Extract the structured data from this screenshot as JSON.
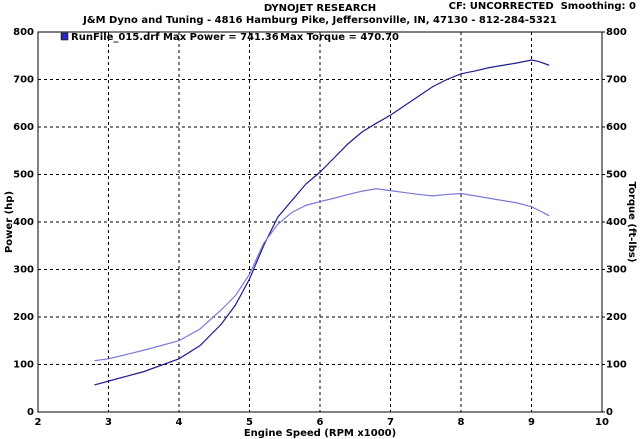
{
  "chart_data": {
    "type": "line",
    "title": "DYNOJET RESEARCH",
    "subtitle": "J&M Dyno and Tuning - 4816 Hamburg Pike, Jeffersonville, IN, 47130 - 812-284-5321",
    "corner_note": "CF: UNCORRECTED  Smoothing: 0",
    "legend_text": "RunFile_015.drf Max Power = 741.36",
    "legend_text_2": "Max Torque = 470.70",
    "xlabel": "Engine Speed (RPM x1000)",
    "ylabel": "Power (hp)",
    "y2label": "Torque (ft-lbs)",
    "xlim": [
      2,
      10
    ],
    "xticks": [
      2,
      3,
      4,
      5,
      6,
      7,
      8,
      9,
      10
    ],
    "ylim": [
      0,
      800
    ],
    "yticks": [
      0,
      100,
      200,
      300,
      400,
      500,
      600,
      700,
      800
    ],
    "y2lim": [
      0,
      800
    ],
    "y2ticks": [
      0,
      100,
      200,
      300,
      400,
      500,
      600,
      700,
      800
    ],
    "grid": true,
    "x": [
      2.8,
      3.0,
      3.5,
      4.0,
      4.3,
      4.6,
      4.8,
      5.0,
      5.2,
      5.4,
      5.6,
      5.8,
      6.0,
      6.2,
      6.4,
      6.6,
      6.8,
      7.0,
      7.2,
      7.4,
      7.6,
      7.8,
      8.0,
      8.2,
      8.4,
      8.6,
      8.8,
      9.0,
      9.1,
      9.25
    ],
    "series": [
      {
        "color": "#1c1c8e",
        "values": [
          57,
          65,
          85,
          112,
          140,
          185,
          225,
          280,
          350,
          410,
          445,
          480,
          505,
          535,
          565,
          590,
          608,
          625,
          645,
          665,
          685,
          700,
          712,
          718,
          725,
          730,
          735,
          741,
          738,
          730
        ]
      },
      {
        "color": "#7a7ad8",
        "axis": "y2",
        "values": [
          108,
          112,
          130,
          150,
          175,
          215,
          245,
          290,
          355,
          395,
          420,
          435,
          443,
          450,
          458,
          465,
          470,
          466,
          462,
          458,
          455,
          458,
          460,
          455,
          450,
          445,
          440,
          432,
          425,
          413
        ]
      }
    ]
  }
}
